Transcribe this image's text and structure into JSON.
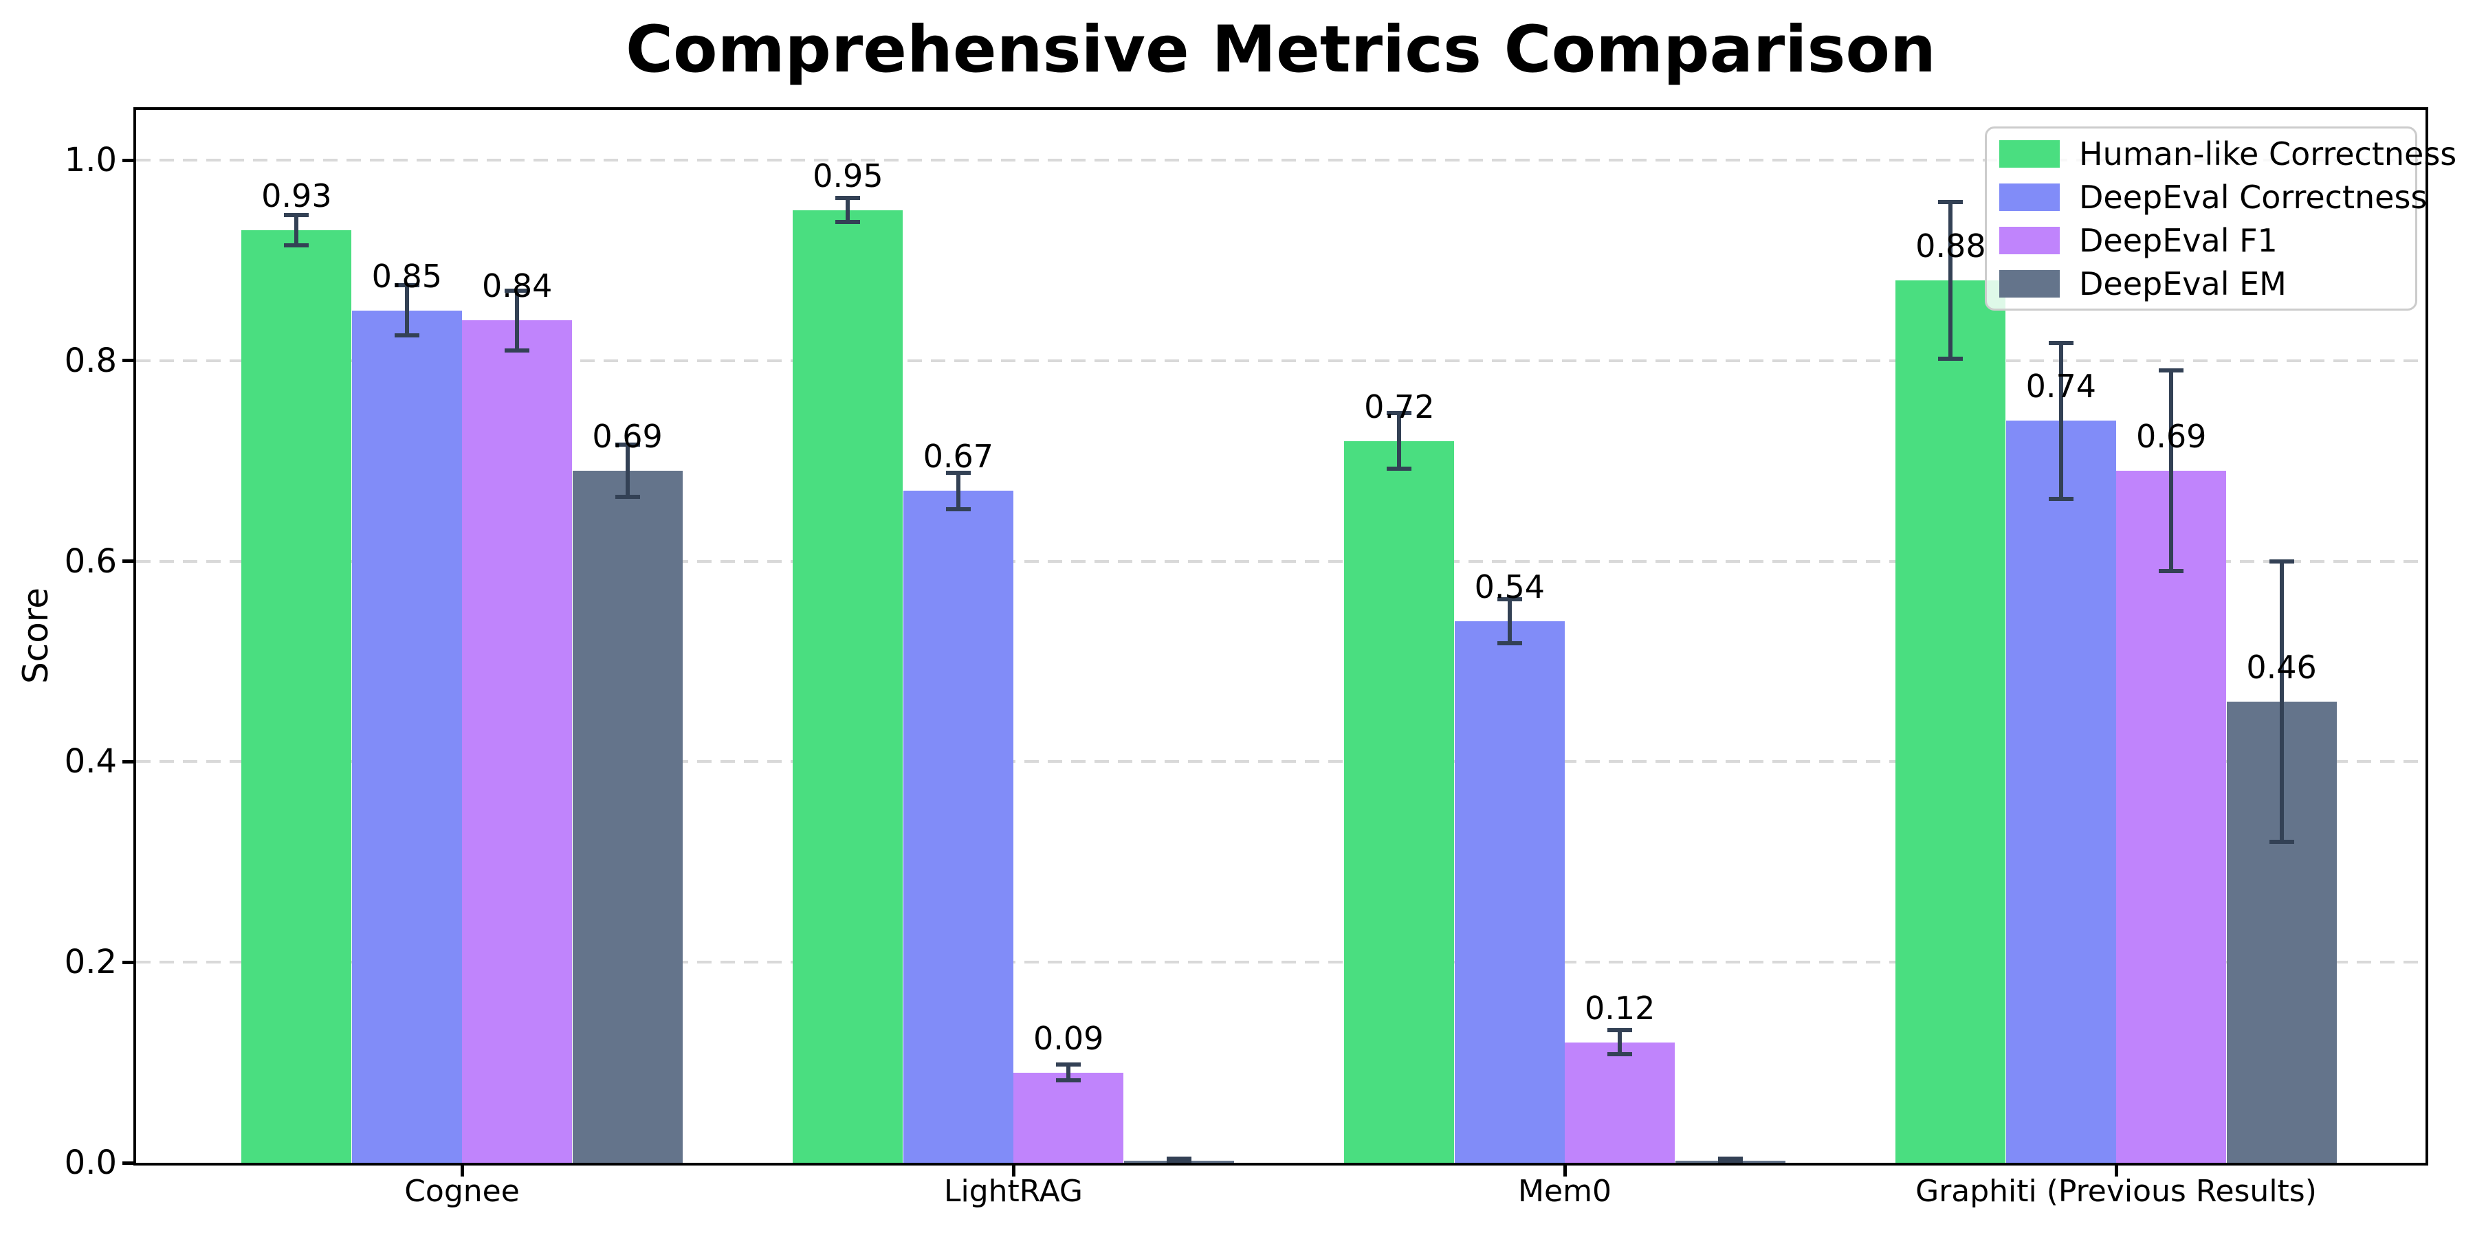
{
  "chart_data": {
    "type": "bar",
    "title": "Comprehensive Metrics Comparison",
    "xlabel": "",
    "ylabel": "Score",
    "categories": [
      "Cognee",
      "LightRAG",
      "Mem0",
      "Graphiti (Previous Results)"
    ],
    "series": [
      {
        "name": "Human-like Correctness",
        "color": "#4ade80",
        "values": [
          0.93,
          0.95,
          0.72,
          0.88
        ],
        "errors": [
          0.015,
          0.012,
          0.028,
          0.078
        ],
        "labels": [
          "0.93",
          "0.95",
          "0.72",
          "0.88"
        ]
      },
      {
        "name": "DeepEval Correctness",
        "color": "#818cf8",
        "values": [
          0.85,
          0.67,
          0.54,
          0.74
        ],
        "errors": [
          0.025,
          0.018,
          0.022,
          0.078
        ],
        "labels": [
          "0.85",
          "0.67",
          "0.54",
          "0.74"
        ]
      },
      {
        "name": "DeepEval F1",
        "color": "#c084fc",
        "values": [
          0.84,
          0.09,
          0.12,
          0.69
        ],
        "errors": [
          0.03,
          0.008,
          0.012,
          0.1
        ],
        "labels": [
          "0.84",
          "0.09",
          "0.12",
          "0.69"
        ]
      },
      {
        "name": "DeepEval EM",
        "color": "#64748b",
        "values": [
          0.69,
          0.0,
          0.0,
          0.46
        ],
        "errors": [
          0.026,
          0.004,
          0.004,
          0.14
        ],
        "labels": [
          "0.69",
          "",
          "",
          "0.46"
        ]
      }
    ],
    "yticks": [
      "0.0",
      "0.2",
      "0.4",
      "0.6",
      "0.8",
      "1.0"
    ],
    "ytick_values": [
      0.0,
      0.2,
      0.4,
      0.6,
      0.8,
      1.0
    ],
    "ylim": [
      0,
      1.05
    ],
    "grid": "horizontal-dashed",
    "legend": {
      "position": "upper right",
      "entries": [
        "Human-like Correctness",
        "DeepEval Correctness",
        "DeepEval F1",
        "DeepEval EM"
      ]
    },
    "colors": {
      "error_bar": "#334155",
      "grid_line": "#d9d9d9",
      "axis": "#000000",
      "text": "#000000",
      "background": "#ffffff"
    }
  }
}
